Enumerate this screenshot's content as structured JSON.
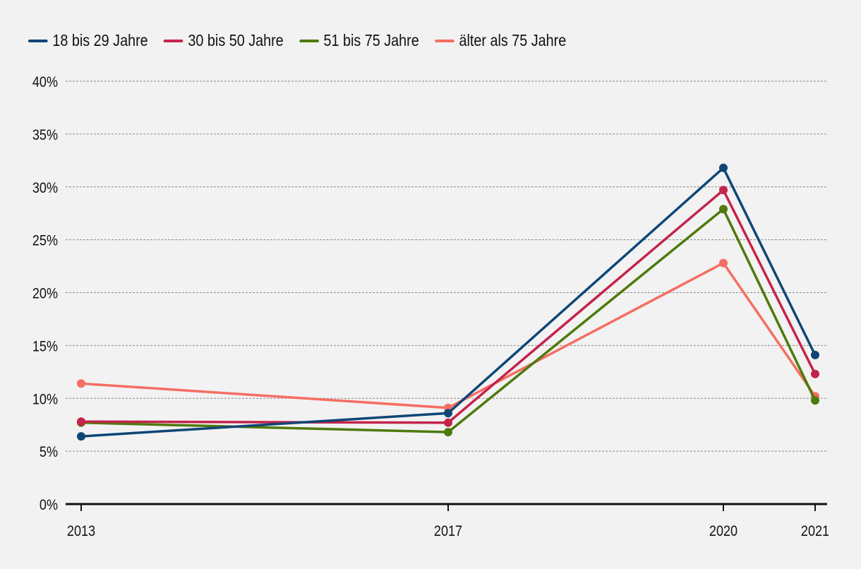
{
  "chart_data": {
    "type": "line",
    "title": "",
    "xlabel": "",
    "ylabel": "",
    "x": [
      2013,
      2017,
      2020,
      2021
    ],
    "x_tick_labels": [
      "2013",
      "2017",
      "2020",
      "2021"
    ],
    "ylim": [
      0,
      40
    ],
    "y_ticks": [
      0,
      5,
      10,
      15,
      20,
      25,
      30,
      35,
      40
    ],
    "y_tick_labels": [
      "0%",
      "5%",
      "10%",
      "15%",
      "20%",
      "25%",
      "30%",
      "35%",
      "40%"
    ],
    "grid": true,
    "legend_position": "top-left",
    "series": [
      {
        "name": "18 bis 29 Jahre",
        "color": "#0f4676",
        "values": [
          6.4,
          8.6,
          31.8,
          14.1
        ]
      },
      {
        "name": "30 bis 50 Jahre",
        "color": "#c4234b",
        "values": [
          7.8,
          7.7,
          29.7,
          12.3
        ]
      },
      {
        "name": "51 bis 75 Jahre",
        "color": "#4e7a0c",
        "values": [
          7.7,
          6.8,
          27.9,
          9.8
        ]
      },
      {
        "name": "älter als 75 Jahre",
        "color": "#f56e63",
        "values": [
          11.4,
          9.1,
          22.8,
          10.2
        ]
      }
    ]
  }
}
